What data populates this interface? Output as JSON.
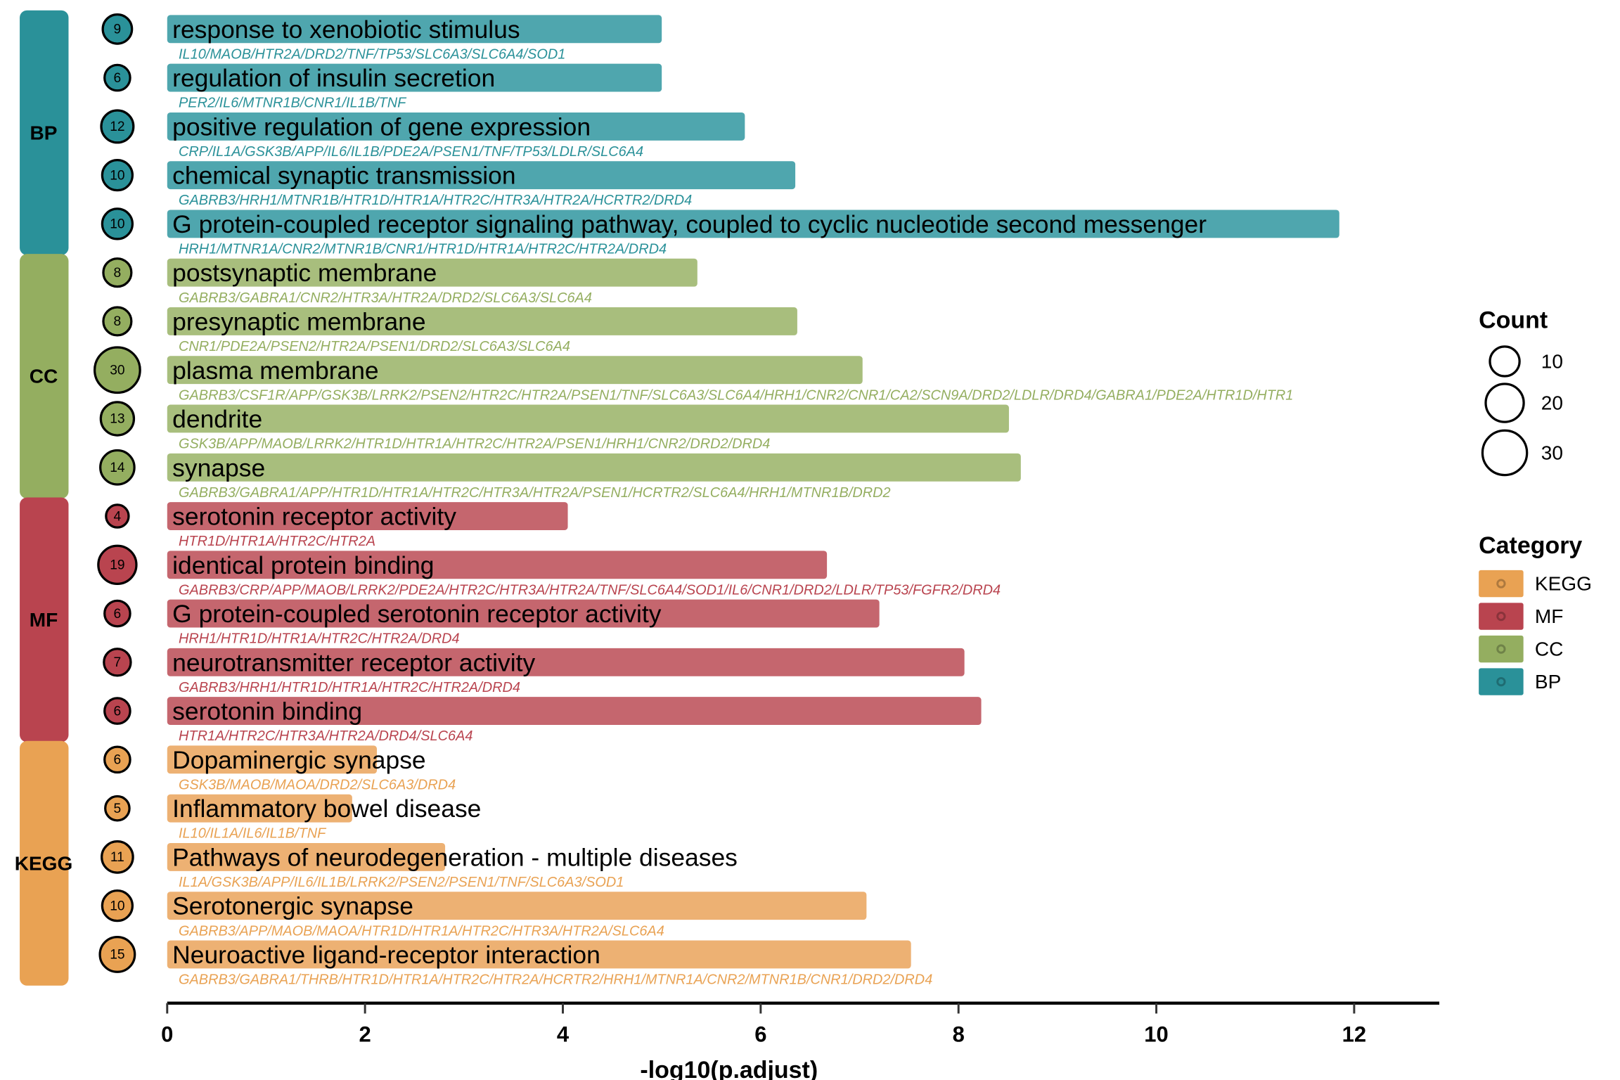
{
  "chart_data": {
    "type": "bar",
    "title": "",
    "xlabel": "-log10(p.adjust)",
    "ylabel": "",
    "xlim": [
      0,
      12.85
    ],
    "xticks": [
      0,
      2,
      4,
      6,
      8,
      10,
      12
    ],
    "grid": false,
    "legend_position": "right",
    "legends": {
      "count": {
        "title": "Count",
        "entries": [
          10,
          20,
          30
        ]
      },
      "category": {
        "title": "Category",
        "entries": [
          "KEGG",
          "MF",
          "CC",
          "BP"
        ]
      }
    },
    "category_colors": {
      "BP": "#2A9199",
      "CC": "#94AE60",
      "MF": "#B9444F",
      "KEGG": "#E9A253"
    },
    "bar_colors": {
      "BP": "#4FA6AE",
      "CC": "#A8BE7D",
      "MF": "#C5666E",
      "KEGG": "#EDB173"
    },
    "categories": [
      "BP",
      "CC",
      "MF",
      "KEGG"
    ],
    "terms": [
      {
        "category": "BP",
        "label": "response to xenobiotic stimulus",
        "value": 5.0,
        "count": 9,
        "genes": "IL10/MAOB/HTR2A/DRD2/TNF/TP53/SLC6A3/SLC6A4/SOD1"
      },
      {
        "category": "BP",
        "label": "regulation of insulin secretion",
        "value": 5.0,
        "count": 6,
        "genes": "PER2/IL6/MTNR1B/CNR1/IL1B/TNF"
      },
      {
        "category": "BP",
        "label": "positive regulation of gene expression",
        "value": 5.84,
        "count": 12,
        "genes": "CRP/IL1A/GSK3B/APP/IL6/IL1B/PDE2A/PSEN1/TNF/TP53/LDLR/SLC6A4"
      },
      {
        "category": "BP",
        "label": "chemical synaptic transmission",
        "value": 6.35,
        "count": 10,
        "genes": "GABRB3/HRH1/MTNR1B/HTR1D/HTR1A/HTR2C/HTR3A/HTR2A/HCRTR2/DRD4"
      },
      {
        "category": "BP",
        "label": "G protein-coupled receptor signaling pathway, coupled to cyclic nucleotide second messenger",
        "value": 11.85,
        "count": 10,
        "genes": "HRH1/MTNR1A/CNR2/MTNR1B/CNR1/HTR1D/HTR1A/HTR2C/HTR2A/DRD4"
      },
      {
        "category": "CC",
        "label": "postsynaptic membrane",
        "value": 5.36,
        "count": 8,
        "genes": "GABRB3/GABRA1/CNR2/HTR3A/HTR2A/DRD2/SLC6A3/SLC6A4"
      },
      {
        "category": "CC",
        "label": "presynaptic membrane",
        "value": 6.37,
        "count": 8,
        "genes": "CNR1/PDE2A/PSEN2/HTR2A/PSEN1/DRD2/SLC6A3/SLC6A4"
      },
      {
        "category": "CC",
        "label": "plasma membrane",
        "value": 7.03,
        "count": 30,
        "genes": "GABRB3/CSF1R/APP/GSK3B/LRRK2/PSEN2/HTR2C/HTR2A/PSEN1/TNF/SLC6A3/SLC6A4/HRH1/CNR2/CNR1/CA2/SCN9A/DRD2/LDLR/DRD4/GABRA1/PDE2A/HTR1D/HTR1"
      },
      {
        "category": "CC",
        "label": "dendrite",
        "value": 8.51,
        "count": 13,
        "genes": "GSK3B/APP/MAOB/LRRK2/HTR1D/HTR1A/HTR2C/HTR2A/PSEN1/HRH1/CNR2/DRD2/DRD4"
      },
      {
        "category": "CC",
        "label": "synapse",
        "value": 8.63,
        "count": 14,
        "genes": "GABRB3/GABRA1/APP/HTR1D/HTR1A/HTR2C/HTR3A/HTR2A/PSEN1/HCRTR2/SLC6A4/HRH1/MTNR1B/DRD2"
      },
      {
        "category": "MF",
        "label": "serotonin receptor activity",
        "value": 4.05,
        "count": 4,
        "genes": "HTR1D/HTR1A/HTR2C/HTR2A"
      },
      {
        "category": "MF",
        "label": "identical protein binding",
        "value": 6.67,
        "count": 19,
        "genes": "GABRB3/CRP/APP/MAOB/LRRK2/PDE2A/HTR2C/HTR3A/HTR2A/TNF/SLC6A4/SOD1/IL6/CNR1/DRD2/LDLR/TP53/FGFR2/DRD4"
      },
      {
        "category": "MF",
        "label": "G protein-coupled serotonin receptor activity",
        "value": 7.2,
        "count": 6,
        "genes": "HRH1/HTR1D/HTR1A/HTR2C/HTR2A/DRD4"
      },
      {
        "category": "MF",
        "label": "neurotransmitter receptor activity",
        "value": 8.06,
        "count": 7,
        "genes": "GABRB3/HRH1/HTR1D/HTR1A/HTR2C/HTR2A/DRD4"
      },
      {
        "category": "MF",
        "label": "serotonin binding",
        "value": 8.23,
        "count": 6,
        "genes": "HTR1A/HTR2C/HTR3A/HTR2A/DRD4/SLC6A4"
      },
      {
        "category": "KEGG",
        "label": "Dopaminergic synapse",
        "value": 2.12,
        "count": 6,
        "genes": "GSK3B/MAOB/MAOA/DRD2/SLC6A3/DRD4"
      },
      {
        "category": "KEGG",
        "label": "Inflammatory bowel disease",
        "value": 1.87,
        "count": 5,
        "genes": "IL10/IL1A/IL6/IL1B/TNF"
      },
      {
        "category": "KEGG",
        "label": "Pathways of neurodegeneration - multiple diseases",
        "value": 2.81,
        "count": 11,
        "genes": "IL1A/GSK3B/APP/IL6/IL1B/LRRK2/PSEN2/PSEN1/TNF/SLC6A3/SOD1"
      },
      {
        "category": "KEGG",
        "label": "Serotonergic synapse",
        "value": 7.07,
        "count": 10,
        "genes": "GABRB3/APP/MAOB/MAOA/HTR1D/HTR1A/HTR2C/HTR3A/HTR2A/SLC6A4"
      },
      {
        "category": "KEGG",
        "label": "Neuroactive ligand-receptor interaction",
        "value": 7.52,
        "count": 15,
        "genes": "GABRB3/GABRA1/THRB/HTR1D/HTR1A/HTR2C/HTR2A/HCRTR2/HRH1/MTNR1A/CNR2/MTNR1B/CNR1/DRD2/DRD4"
      }
    ]
  }
}
